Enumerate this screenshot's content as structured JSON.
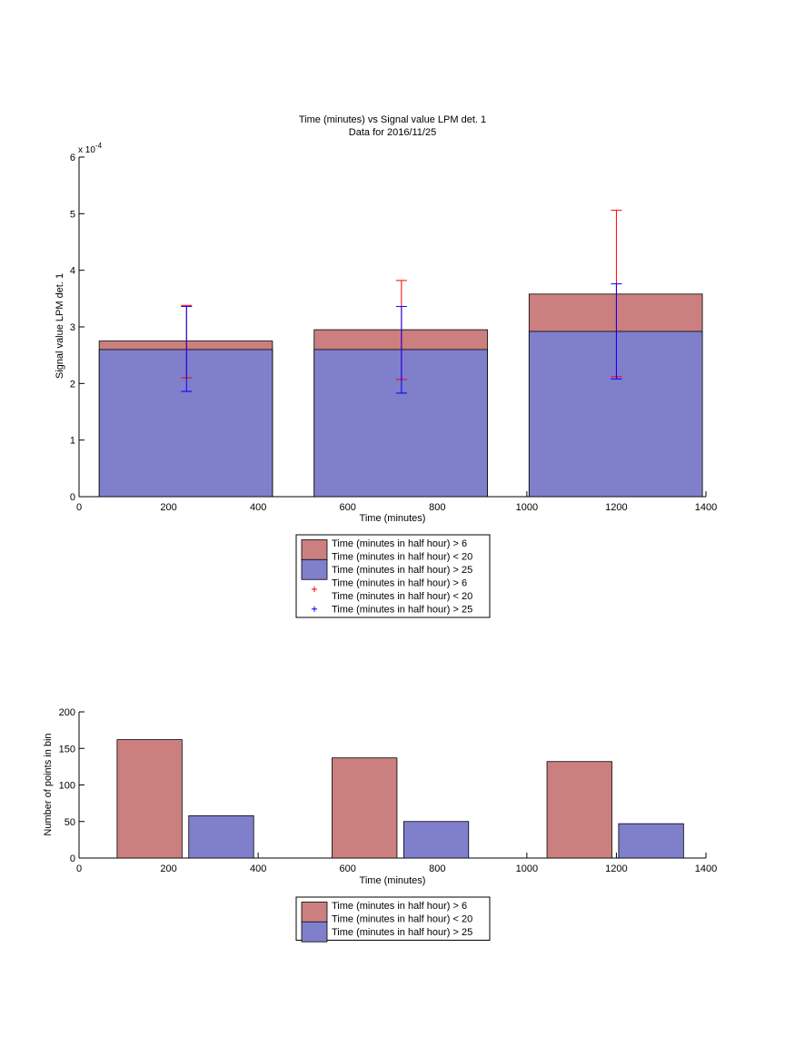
{
  "colors": {
    "red_fill": "#CC7F7F",
    "blue_fill": "#7F7FCC",
    "red_err": "#FF0000",
    "blue_err": "#0000FF",
    "edge": "#000000"
  },
  "chart_data": [
    {
      "type": "bar",
      "title": "Time (minutes) vs Signal value LPM det. 1",
      "subtitle": "Data for 2016/11/25",
      "xlabel": "Time (minutes)",
      "ylabel": "Signal value LPM det. 1",
      "exponent_label": "x 10",
      "exponent_power": "-4",
      "xlim": [
        0,
        1400
      ],
      "ylim": [
        0,
        6
      ],
      "xticks": [
        "0",
        "200",
        "400",
        "600",
        "800",
        "1000",
        "1200",
        "1400"
      ],
      "yticks": [
        "0",
        "1",
        "2",
        "3",
        "4",
        "5",
        "6"
      ],
      "bar_spans": [
        [
          45,
          432
        ],
        [
          525,
          912
        ],
        [
          1005,
          1392
        ]
      ],
      "series": [
        {
          "name": "Time (minutes in half hour) > 6\nTime (minutes in half hour) < 20",
          "color": "#CC7F7F",
          "values": [
            2.75,
            2.95,
            3.58
          ]
        },
        {
          "name": "Time (minutes in half hour) > 25",
          "color": "#7F7FCC",
          "values": [
            2.6,
            2.6,
            2.92
          ]
        }
      ],
      "errorbars": [
        {
          "name": "Time (minutes in half hour) > 6\nTime (minutes in half hour) < 20",
          "color": "#FF0000",
          "x": [
            240,
            720,
            1200
          ],
          "low": [
            2.1,
            2.07,
            2.12
          ],
          "high": [
            3.38,
            3.82,
            5.06
          ]
        },
        {
          "name": "Time (minutes in half hour) > 25",
          "color": "#0000FF",
          "x": [
            240,
            720,
            1200
          ],
          "low": [
            1.86,
            1.83,
            2.08
          ],
          "high": [
            3.36,
            3.36,
            3.76
          ]
        }
      ],
      "legend": [
        {
          "kind": "patch",
          "color": "#CC7F7F",
          "lines": [
            "Time (minutes in half hour) > 6",
            "Time (minutes in half hour) < 20"
          ]
        },
        {
          "kind": "patch",
          "color": "#7F7FCC",
          "lines": [
            "Time (minutes in half hour) > 25"
          ]
        },
        {
          "kind": "marker",
          "color": "#FF0000",
          "lines": [
            "Time (minutes in half hour) > 6",
            "Time (minutes in half hour) < 20"
          ]
        },
        {
          "kind": "marker",
          "color": "#0000FF",
          "lines": [
            "Time (minutes in half hour) > 25"
          ]
        }
      ],
      "legend_position": "below"
    },
    {
      "type": "bar",
      "xlabel": "Time (minutes)",
      "ylabel": "Number of points in bin",
      "xlim": [
        0,
        1400
      ],
      "ylim": [
        0,
        200
      ],
      "xticks": [
        "0",
        "200",
        "400",
        "600",
        "800",
        "1000",
        "1200",
        "1400"
      ],
      "yticks": [
        "0",
        "50",
        "100",
        "150",
        "200"
      ],
      "series": [
        {
          "name": "Time (minutes in half hour) > 6\nTime (minutes in half hour) < 20",
          "color": "#CC7F7F",
          "x_spans": [
            [
              85,
              230
            ],
            [
              565,
              710
            ],
            [
              1045,
              1190
            ]
          ],
          "values": [
            162,
            137,
            132
          ]
        },
        {
          "name": "Time (minutes in half hour) > 25",
          "color": "#7F7FCC",
          "x_spans": [
            [
              245,
              390
            ],
            [
              725,
              870
            ],
            [
              1205,
              1350
            ]
          ],
          "values": [
            58,
            50,
            47
          ]
        }
      ],
      "legend": [
        {
          "kind": "patch",
          "color": "#CC7F7F",
          "lines": [
            "Time (minutes in half hour) > 6",
            "Time (minutes in half hour) < 20"
          ]
        },
        {
          "kind": "patch",
          "color": "#7F7FCC",
          "lines": [
            "Time (minutes in half hour) > 25"
          ]
        }
      ],
      "legend_position": "below"
    }
  ]
}
